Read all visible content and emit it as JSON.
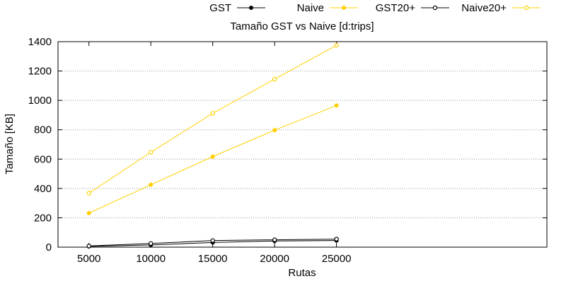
{
  "chart_data": {
    "type": "line",
    "title": "Tamaño GST vs Naive [d:trips]",
    "xlabel": "Rutas",
    "ylabel": "Tamaño [KB]",
    "x": [
      5000,
      10000,
      15000,
      20000,
      25000
    ],
    "xticks": [
      5000,
      10000,
      15000,
      20000,
      25000
    ],
    "xlim": [
      2500,
      42000
    ],
    "ylim": [
      0,
      1400
    ],
    "yticks": [
      0,
      200,
      400,
      600,
      800,
      1000,
      1200,
      1400
    ],
    "grid": "horizontal dotted",
    "legend_position": "top",
    "series": [
      {
        "name": "GST",
        "color": "#000000",
        "marker": "filled-circle",
        "values": [
          5,
          15,
          32,
          42,
          45
        ]
      },
      {
        "name": "Naive",
        "color": "#ffd000",
        "marker": "filled-circle",
        "values": [
          232,
          425,
          617,
          797,
          965
        ]
      },
      {
        "name": "GST20+",
        "color": "#000000",
        "marker": "open-circle",
        "values": [
          8,
          25,
          45,
          50,
          55
        ]
      },
      {
        "name": "Naive20+",
        "color": "#ffd000",
        "marker": "open-circle",
        "values": [
          368,
          647,
          912,
          1145,
          1375
        ]
      }
    ]
  }
}
